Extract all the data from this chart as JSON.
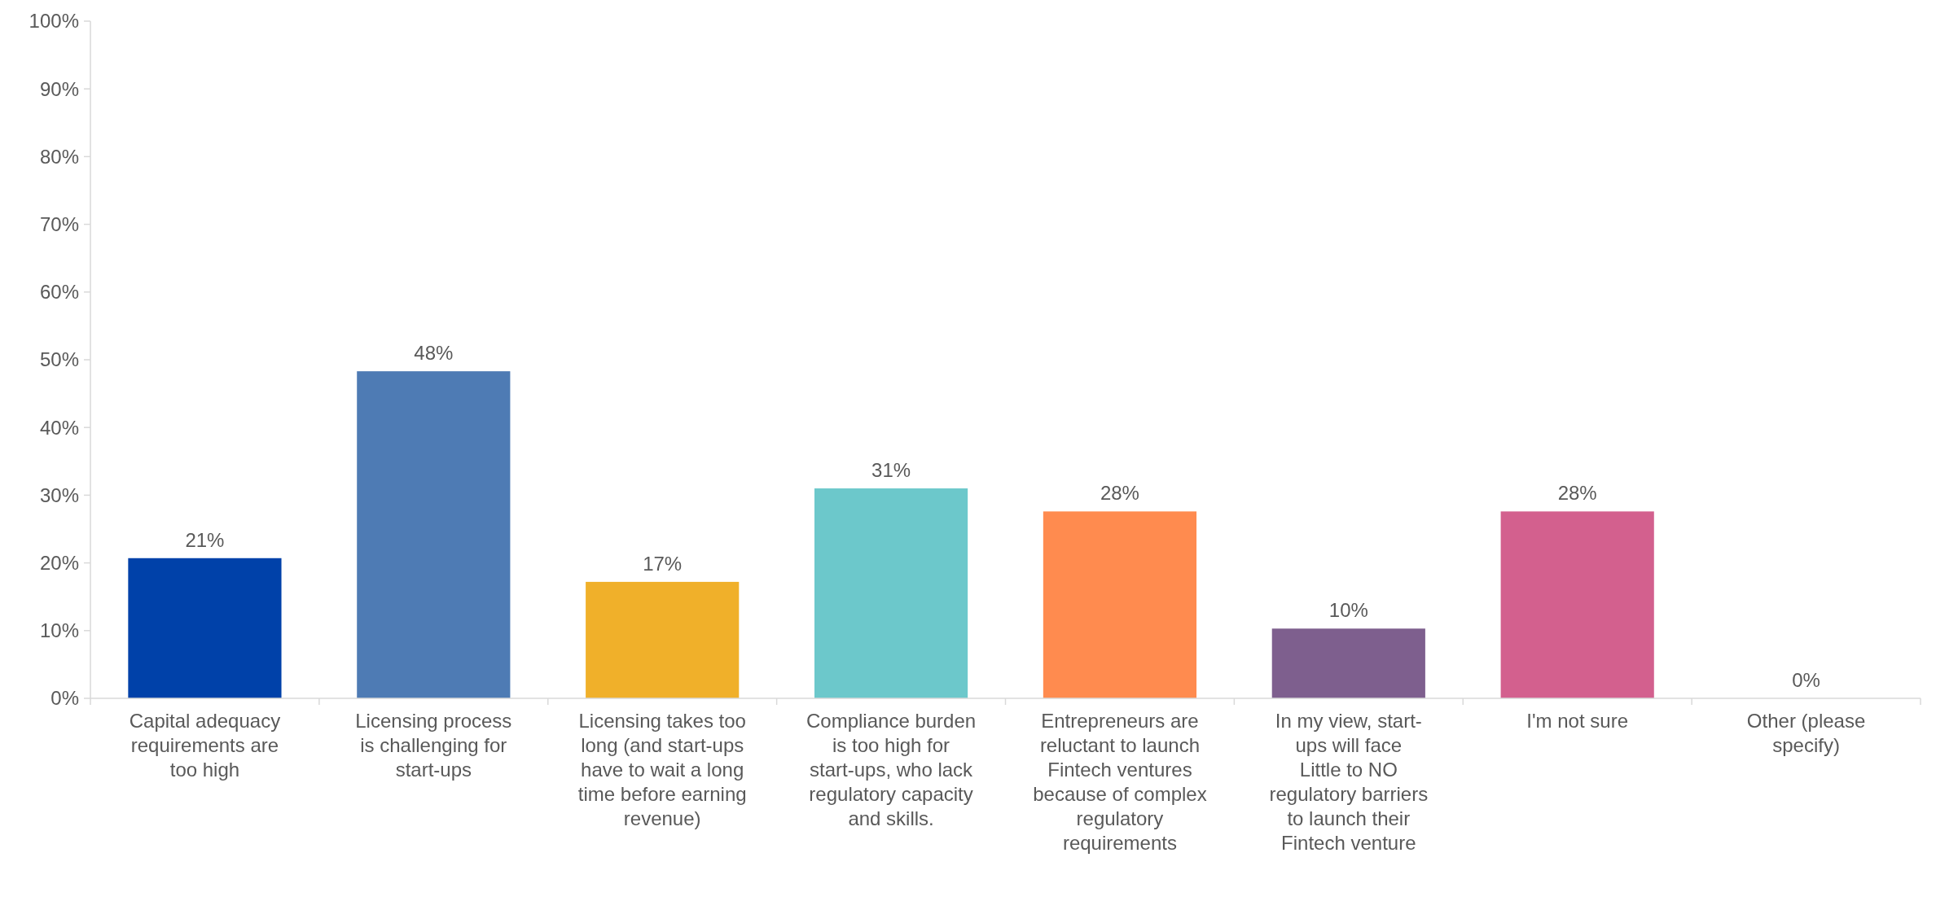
{
  "chart_data": {
    "type": "bar",
    "categories": [
      "Capital adequacy requirements are too high",
      "Licensing process is challenging for start-ups",
      "Licensing takes too long (and start-ups have to wait a long time before earning revenue)",
      "Compliance burden is too high for start-ups, who lack regulatory capacity and skills.",
      "Entrepreneurs are reluctant to launch Fintech ventures because of complex regulatory requirements",
      "In my view, start-ups will face Little to NO regulatory barriers to launch their Fintech venture",
      "I'm not sure",
      "Other (please specify)"
    ],
    "values": [
      20.7,
      48.3,
      17.2,
      31.0,
      27.6,
      10.3,
      27.6,
      0
    ],
    "colors": [
      "#0041a9",
      "#4e7bb4",
      "#f0b02a",
      "#6cc8cb",
      "#ff8b4f",
      "#7e5f8e",
      "#d3608e",
      "#8faadc"
    ],
    "value_labels": [
      "21%",
      "48%",
      "17%",
      "31%",
      "28%",
      "10%",
      "28%",
      "0%"
    ],
    "ylim": [
      0,
      100
    ],
    "yticks": [
      {
        "value": 0,
        "label": "0%"
      },
      {
        "value": 10,
        "label": "10%"
      },
      {
        "value": 20,
        "label": "20%"
      },
      {
        "value": 30,
        "label": "30%"
      },
      {
        "value": 40,
        "label": "40%"
      },
      {
        "value": 50,
        "label": "50%"
      },
      {
        "value": 60,
        "label": "60%"
      },
      {
        "value": 70,
        "label": "70%"
      },
      {
        "value": 80,
        "label": "80%"
      },
      {
        "value": 90,
        "label": "90%"
      },
      {
        "value": 100,
        "label": "100%"
      }
    ],
    "grid": false
  }
}
